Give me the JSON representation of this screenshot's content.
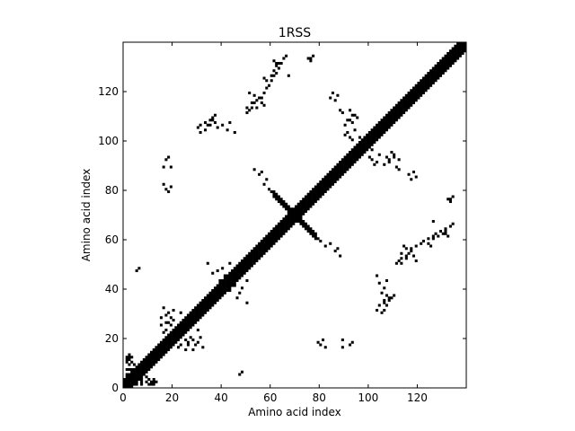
{
  "chart_data": {
    "type": "heatmap",
    "title": "1RSS",
    "xlabel": "Amino acid index",
    "ylabel": "Amino acid index",
    "xlim": [
      0,
      140
    ],
    "ylim": [
      0,
      140
    ],
    "xticks": [
      0,
      20,
      40,
      60,
      80,
      100,
      120
    ],
    "yticks": [
      0,
      20,
      40,
      60,
      80,
      100,
      120
    ],
    "grid": false,
    "colors": {
      "contact": "#000000",
      "background": "#ffffff",
      "frame": "#000000"
    },
    "diagonal_bands": [
      {
        "from": 0,
        "to": 140,
        "half_width": 3
      }
    ],
    "off_diagonal_bands": [
      {
        "from": [
          68,
          71
        ],
        "to": [
          78,
          61
        ],
        "half_width": 1
      },
      {
        "from": [
          61,
          78
        ],
        "to": [
          71,
          68
        ],
        "half_width": 1
      }
    ],
    "contact_points": [
      [
        1,
        11
      ],
      [
        2,
        12
      ],
      [
        2,
        9
      ],
      [
        3,
        10
      ],
      [
        1,
        7
      ],
      [
        3,
        7
      ],
      [
        5,
        1
      ],
      [
        7,
        2
      ],
      [
        10,
        1
      ],
      [
        11,
        2
      ],
      [
        12,
        1
      ],
      [
        9,
        4
      ],
      [
        13,
        2
      ],
      [
        12,
        3
      ],
      [
        16,
        32
      ],
      [
        15,
        28
      ],
      [
        17,
        29
      ],
      [
        18,
        30
      ],
      [
        17,
        26
      ],
      [
        19,
        25
      ],
      [
        20,
        27
      ],
      [
        23,
        17
      ],
      [
        22,
        16
      ],
      [
        25,
        15
      ],
      [
        26,
        18
      ],
      [
        28,
        19
      ],
      [
        31,
        20
      ],
      [
        30,
        23
      ],
      [
        16,
        89
      ],
      [
        17,
        92
      ],
      [
        19,
        89
      ],
      [
        18,
        93
      ],
      [
        30,
        105
      ],
      [
        31,
        106
      ],
      [
        33,
        107
      ],
      [
        34,
        106
      ],
      [
        35,
        108
      ],
      [
        36,
        109
      ],
      [
        37,
        110
      ],
      [
        39,
        41
      ],
      [
        41,
        43
      ],
      [
        43,
        39
      ],
      [
        45,
        41
      ],
      [
        46,
        36
      ],
      [
        47,
        38
      ],
      [
        48,
        40
      ],
      [
        50,
        43
      ],
      [
        50,
        34
      ],
      [
        49,
        47
      ],
      [
        47,
        5
      ],
      [
        48,
        6
      ],
      [
        46,
        45
      ],
      [
        50,
        111
      ],
      [
        51,
        112
      ],
      [
        52,
        113
      ],
      [
        53,
        115
      ],
      [
        54,
        113
      ],
      [
        56,
        117
      ],
      [
        57,
        119
      ],
      [
        58,
        121
      ],
      [
        59,
        122
      ],
      [
        60,
        124
      ],
      [
        61,
        126
      ],
      [
        62,
        127
      ],
      [
        63,
        129
      ],
      [
        64,
        131
      ],
      [
        65,
        133
      ],
      [
        66,
        134
      ],
      [
        67,
        126
      ],
      [
        62,
        131
      ],
      [
        53,
        88
      ],
      [
        55,
        86
      ],
      [
        56,
        87
      ],
      [
        58,
        84
      ],
      [
        57,
        82
      ],
      [
        59,
        80
      ],
      [
        60,
        79
      ],
      [
        79,
        18
      ],
      [
        80,
        17
      ],
      [
        82,
        16
      ],
      [
        81,
        19
      ],
      [
        84,
        117
      ],
      [
        85,
        119
      ],
      [
        86,
        116
      ],
      [
        87,
        118
      ],
      [
        88,
        112
      ],
      [
        90,
        102
      ],
      [
        91,
        103
      ],
      [
        92,
        101
      ],
      [
        93,
        100
      ],
      [
        94,
        104
      ],
      [
        96,
        101
      ],
      [
        92,
        108
      ],
      [
        93,
        110
      ],
      [
        103,
        31
      ],
      [
        104,
        33
      ],
      [
        106,
        35
      ],
      [
        107,
        37
      ],
      [
        108,
        36
      ],
      [
        105,
        38
      ],
      [
        106,
        40
      ],
      [
        104,
        42
      ],
      [
        107,
        43
      ],
      [
        103,
        45
      ],
      [
        106,
        90
      ],
      [
        107,
        93
      ],
      [
        108,
        91
      ],
      [
        109,
        95
      ],
      [
        110,
        94
      ],
      [
        111,
        89
      ],
      [
        112,
        92
      ],
      [
        114,
        57
      ],
      [
        115,
        56
      ],
      [
        116,
        54
      ],
      [
        117,
        55
      ],
      [
        115,
        52
      ],
      [
        113,
        50
      ],
      [
        118,
        53
      ],
      [
        119,
        51
      ],
      [
        124,
        58
      ],
      [
        125,
        57
      ],
      [
        126,
        60
      ],
      [
        128,
        61
      ],
      [
        130,
        62
      ],
      [
        131,
        63
      ],
      [
        132,
        61
      ],
      [
        133,
        65
      ],
      [
        133,
        76
      ],
      [
        134,
        77
      ],
      [
        5,
        47
      ],
      [
        47,
        5
      ],
      [
        75,
        133
      ],
      [
        76,
        132
      ]
    ]
  }
}
